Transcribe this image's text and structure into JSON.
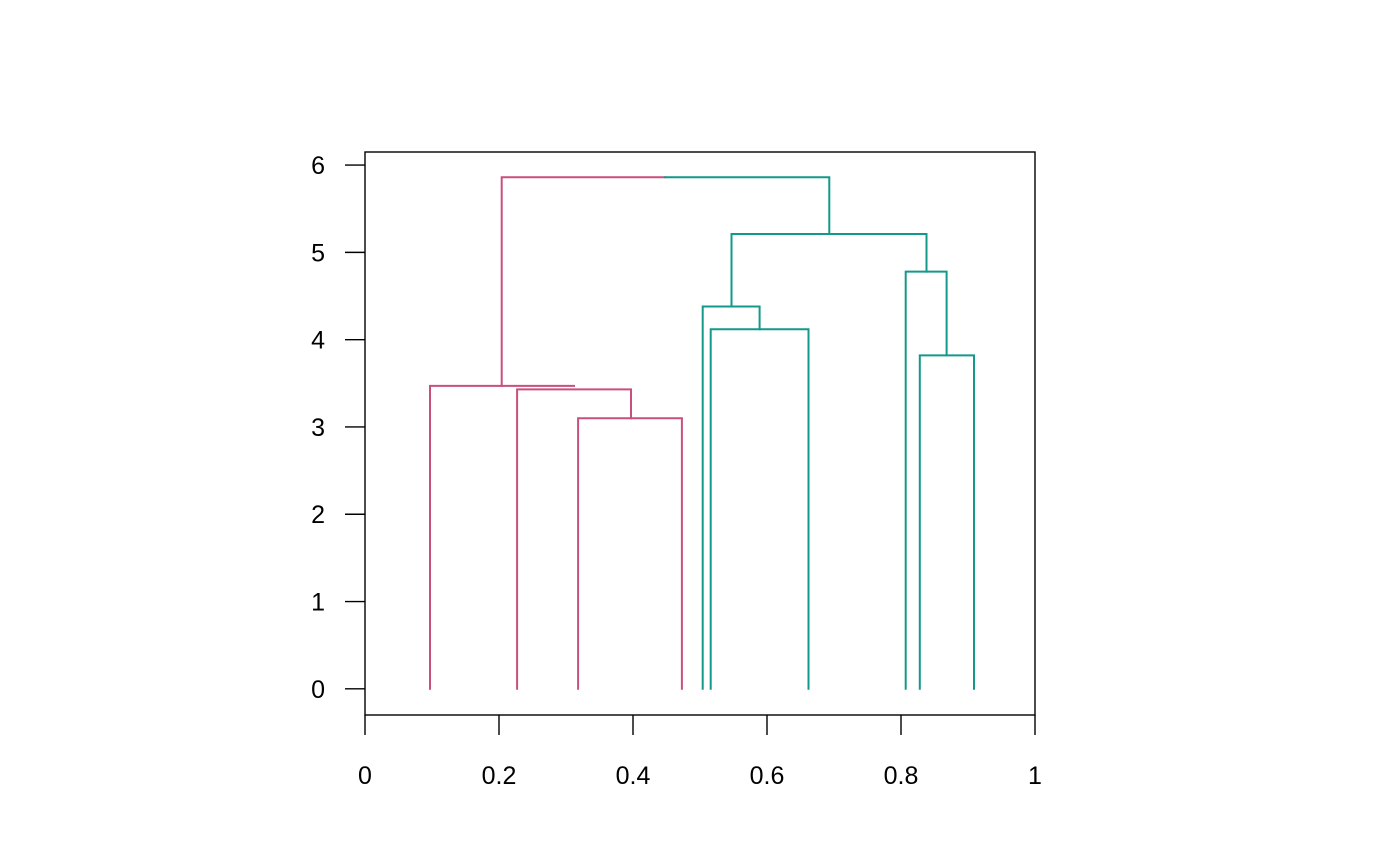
{
  "chart_data": {
    "type": "dendrogram",
    "title": "",
    "xlabel": "",
    "ylabel": "",
    "xlim": [
      0,
      1
    ],
    "ylim": [
      -0.3,
      6.15
    ],
    "x_ticks": [
      0,
      0.2,
      0.4,
      0.6,
      0.8,
      1
    ],
    "x_tick_labels": [
      "0",
      "0.2",
      "0.4",
      "0.6",
      "0.8",
      "1"
    ],
    "y_ticks": [
      0,
      1,
      2,
      3,
      4,
      5,
      6
    ],
    "y_tick_labels": [
      "0",
      "1",
      "2",
      "3",
      "4",
      "5",
      "6"
    ],
    "grid": false,
    "colors": {
      "cluster_a": "#c94f7c",
      "cluster_b": "#13998a"
    },
    "segments": [
      {
        "cluster": "cluster_a",
        "points": [
          [
            0.097,
            0
          ],
          [
            0.097,
            3.47
          ],
          [
            0.312,
            3.47
          ]
        ]
      },
      {
        "cluster": "cluster_a",
        "points": [
          [
            0.227,
            0
          ],
          [
            0.227,
            3.43
          ],
          [
            0.397,
            3.43
          ],
          [
            0.397,
            3.1
          ]
        ]
      },
      {
        "cluster": "cluster_a",
        "points": [
          [
            0.318,
            0
          ],
          [
            0.318,
            3.1
          ],
          [
            0.473,
            3.1
          ],
          [
            0.473,
            0
          ]
        ]
      },
      {
        "cluster": "cluster_a",
        "points": [
          [
            0.204,
            3.47
          ],
          [
            0.204,
            5.86
          ],
          [
            0.448,
            5.86
          ]
        ]
      },
      {
        "cluster": "cluster_b",
        "points": [
          [
            0.448,
            5.86
          ],
          [
            0.693,
            5.86
          ],
          [
            0.693,
            5.21
          ]
        ]
      },
      {
        "cluster": "cluster_b",
        "points": [
          [
            0.547,
            4.38
          ],
          [
            0.547,
            5.21
          ],
          [
            0.838,
            5.21
          ],
          [
            0.838,
            4.78
          ]
        ]
      },
      {
        "cluster": "cluster_b",
        "points": [
          [
            0.504,
            0
          ],
          [
            0.504,
            4.38
          ],
          [
            0.589,
            4.38
          ],
          [
            0.589,
            4.12
          ]
        ]
      },
      {
        "cluster": "cluster_b",
        "points": [
          [
            0.516,
            0
          ],
          [
            0.516,
            4.12
          ],
          [
            0.662,
            4.12
          ],
          [
            0.662,
            0
          ]
        ]
      },
      {
        "cluster": "cluster_b",
        "points": [
          [
            0.807,
            0
          ],
          [
            0.807,
            4.78
          ],
          [
            0.868,
            4.78
          ],
          [
            0.868,
            3.82
          ]
        ]
      },
      {
        "cluster": "cluster_b",
        "points": [
          [
            0.828,
            0
          ],
          [
            0.828,
            3.82
          ],
          [
            0.909,
            3.82
          ],
          [
            0.909,
            0
          ]
        ]
      }
    ]
  }
}
